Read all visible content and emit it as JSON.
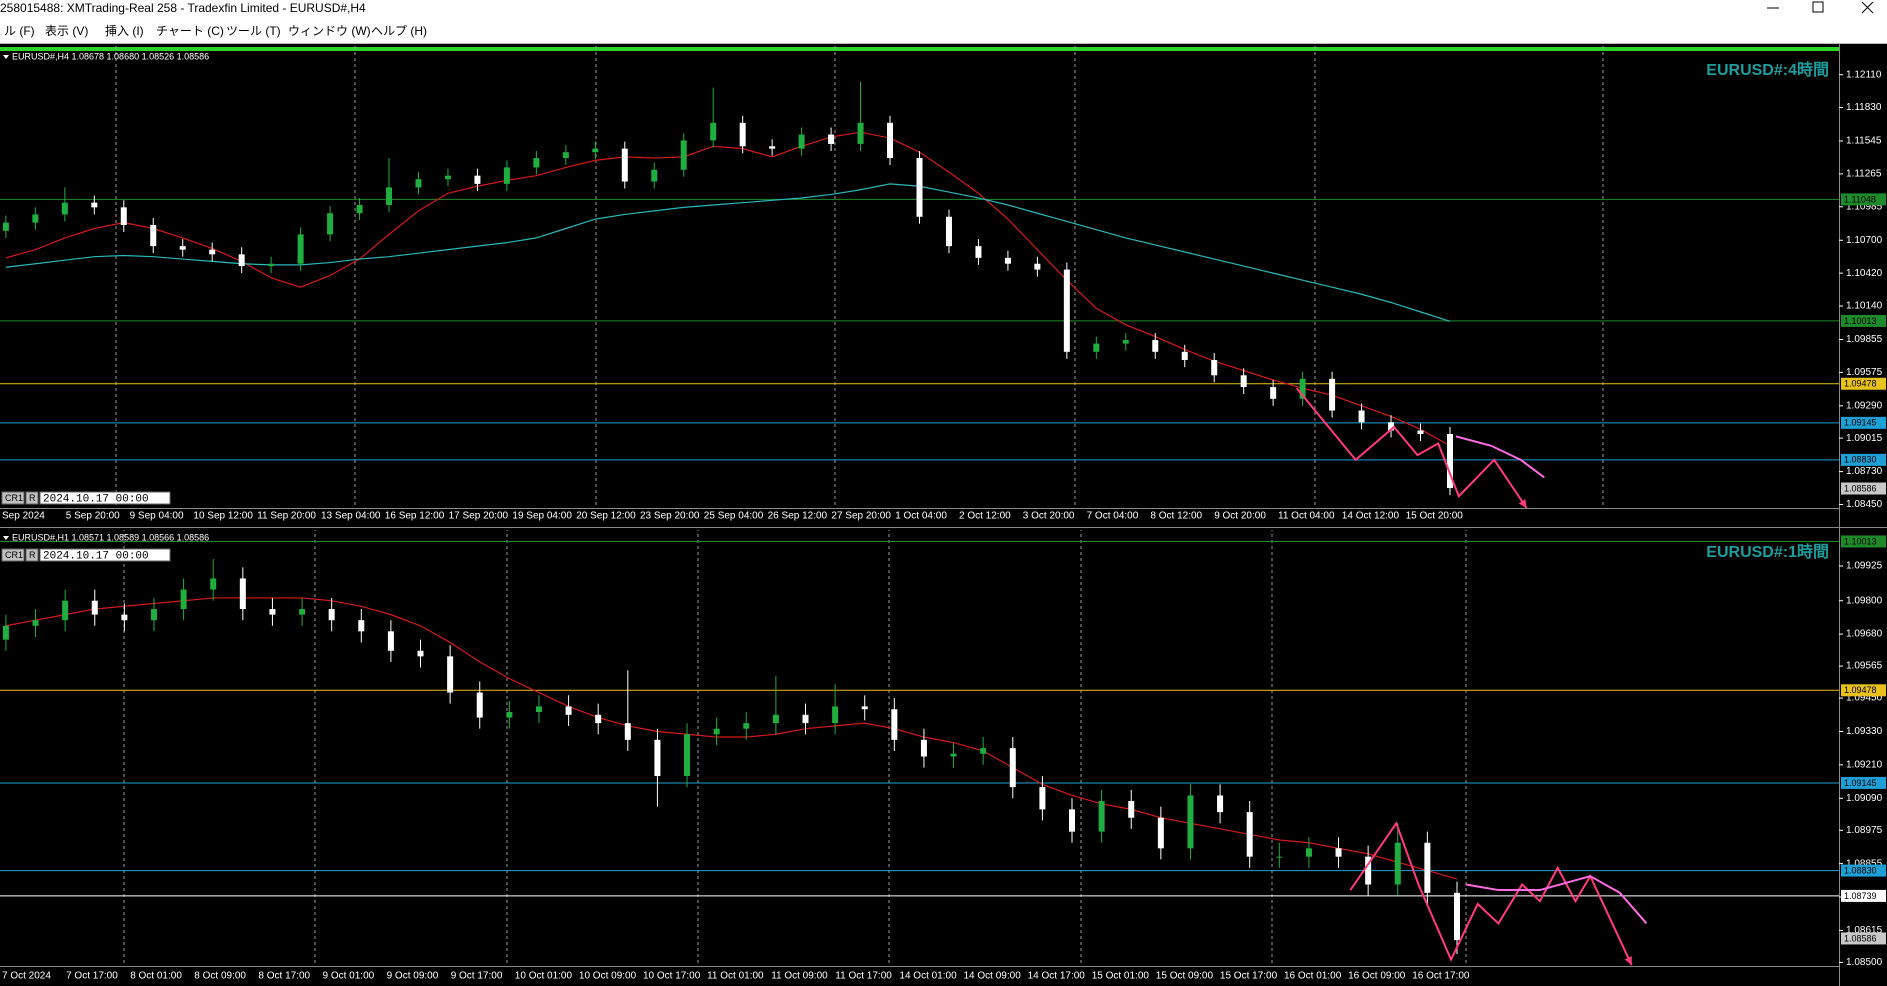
{
  "window": {
    "title": "258015488: XMTrading-Real 258 - Tradexfin Limited - EURUSD#,H4",
    "menu": [
      "ル (F)",
      "表示 (V)",
      "挿入 (I)",
      "チャート (C)",
      "ツール (T)",
      "ウィンドウ (W)",
      "ヘルプ (H)"
    ]
  },
  "chart_data": [
    {
      "type": "candlestick",
      "info": "EURUSD#,H4 1.08678 1.08680 1.08526 1.08586",
      "watermark": "EURUSD#:4時間",
      "cursor_labels": [
        "CR1",
        "R",
        "2024.10.17 00:00"
      ],
      "xlim": [
        -0.2,
        62.2
      ],
      "ylim": [
        1.0842,
        1.1232
      ],
      "yticks": [
        {
          "value": 1.1211,
          "label": "1.12110"
        },
        {
          "value": 1.1183,
          "label": "1.11830"
        },
        1.11545,
        1.11265,
        1.10985,
        {
          "value": 1.107,
          "label": "1.10700"
        },
        {
          "value": 1.1042,
          "label": "1.10420"
        },
        {
          "value": 1.1014,
          "label": "1.10140"
        },
        1.09855,
        1.09575,
        {
          "value": 1.0929,
          "label": "1.09290"
        },
        1.09015,
        {
          "value": 1.0873,
          "label": "1.08730"
        },
        {
          "value": 1.0845,
          "label": "1.08450"
        }
      ],
      "time_labels": [
        "Sep 2024",
        "5 Sep 20:00",
        "9 Sep 04:00",
        "10 Sep 12:00",
        "11 Sep 20:00",
        "13 Sep 04:00",
        "16 Sep 12:00",
        "17 Sep 20:00",
        "19 Sep 04:00",
        "20 Sep 12:00",
        "23 Sep 20:00",
        "25 Sep 04:00",
        "26 Sep 12:00",
        "27 Sep 20:00",
        "1 Oct 04:00",
        "2 Oct 12:00",
        "3 Oct 20:00",
        "7 Oct 04:00",
        "8 Oct 12:00",
        "9 Oct 20:00",
        "11 Oct 04:00",
        "14 Oct 12:00",
        "15 Oct 20:00"
      ],
      "bull_color": "#1fae3f",
      "bear_color": "#ffffff",
      "ohlc": [
        [
          1.1078,
          1.1091,
          1.1072,
          1.1085
        ],
        [
          1.1085,
          1.1098,
          1.1079,
          1.1092
        ],
        [
          1.1092,
          1.1115,
          1.1086,
          1.1102
        ],
        [
          1.1102,
          1.1108,
          1.1092,
          1.1098
        ],
        [
          1.1098,
          1.1104,
          1.1077,
          1.1083
        ],
        [
          1.1083,
          1.1089,
          1.1059,
          1.1065
        ],
        [
          1.1065,
          1.1071,
          1.1056,
          1.1062
        ],
        [
          1.1062,
          1.1068,
          1.1052,
          1.1058
        ],
        [
          1.1058,
          1.1064,
          1.1042,
          1.1048
        ],
        [
          1.1048,
          1.1056,
          1.1042,
          1.105
        ],
        [
          1.105,
          1.1081,
          1.1044,
          1.1075
        ],
        [
          1.1075,
          1.1099,
          1.1069,
          1.1093
        ],
        [
          1.1093,
          1.1106,
          1.1087,
          1.11
        ],
        [
          1.11,
          1.114,
          1.1094,
          1.1115
        ],
        [
          1.1115,
          1.1128,
          1.1109,
          1.1122
        ],
        [
          1.1122,
          1.1131,
          1.1116,
          1.1125
        ],
        [
          1.1125,
          1.1131,
          1.1112,
          1.1118
        ],
        [
          1.1118,
          1.1138,
          1.1112,
          1.1132
        ],
        [
          1.1132,
          1.1146,
          1.1126,
          1.114
        ],
        [
          1.114,
          1.1151,
          1.1134,
          1.1145
        ],
        [
          1.1145,
          1.1154,
          1.1139,
          1.1148
        ],
        [
          1.1148,
          1.1154,
          1.1114,
          1.112
        ],
        [
          1.112,
          1.1136,
          1.1114,
          1.113
        ],
        [
          1.113,
          1.1161,
          1.1124,
          1.1155
        ],
        [
          1.1155,
          1.12,
          1.1149,
          1.117
        ],
        [
          1.117,
          1.1176,
          1.1144,
          1.115
        ],
        [
          1.115,
          1.1156,
          1.1142,
          1.1148
        ],
        [
          1.1148,
          1.1166,
          1.1142,
          1.116
        ],
        [
          1.116,
          1.1166,
          1.1146,
          1.1152
        ],
        [
          1.1152,
          1.1205,
          1.1146,
          1.117
        ],
        [
          1.117,
          1.1176,
          1.1134,
          1.114
        ],
        [
          1.114,
          1.1146,
          1.1084,
          1.109
        ],
        [
          1.109,
          1.1096,
          1.1059,
          1.1065
        ],
        [
          1.1065,
          1.1071,
          1.1049,
          1.1055
        ],
        [
          1.1055,
          1.1061,
          1.1044,
          1.105
        ],
        [
          1.105,
          1.1056,
          1.1039,
          1.1045
        ],
        [
          1.1045,
          1.1051,
          1.0969,
          1.0975
        ],
        [
          1.0975,
          1.0988,
          1.0969,
          1.0982
        ],
        [
          1.0982,
          1.0991,
          1.0976,
          1.0985
        ],
        [
          1.0985,
          1.0991,
          1.0969,
          1.0975
        ],
        [
          1.0975,
          1.0981,
          1.0962,
          1.0968
        ],
        [
          1.0968,
          1.0974,
          1.0949,
          1.0955
        ],
        [
          1.0955,
          1.0961,
          1.0939,
          1.0945
        ],
        [
          1.0945,
          1.0951,
          1.0929,
          1.0935
        ],
        [
          1.0935,
          1.0958,
          1.0929,
          1.0952
        ],
        [
          1.0952,
          1.0958,
          1.0919,
          1.0925
        ],
        [
          1.0925,
          1.0931,
          1.0909,
          1.0915
        ],
        [
          1.0915,
          1.0921,
          1.0902,
          1.0908
        ],
        [
          1.0908,
          1.0914,
          1.0899,
          1.0905
        ],
        [
          1.0905,
          1.0911,
          1.0853,
          1.0859
        ]
      ],
      "lines": [
        {
          "color": "#d41a1a",
          "values": [
            1.1055,
            1.1062,
            1.1072,
            1.108,
            1.1085,
            1.108,
            1.1072,
            1.1063,
            1.1052,
            1.1038,
            1.103,
            1.104,
            1.1054,
            1.1075,
            1.1095,
            1.111,
            1.1116,
            1.1121,
            1.1125,
            1.1132,
            1.1138,
            1.1141,
            1.114,
            1.1141,
            1.115,
            1.1148,
            1.1141,
            1.115,
            1.1158,
            1.1162,
            1.1157,
            1.1145,
            1.1128,
            1.111,
            1.1088,
            1.1062,
            1.1036,
            1.1012,
            1.0998,
            1.0988,
            1.0977,
            1.0967,
            1.0959,
            1.0951,
            1.0944,
            1.0938,
            1.0929,
            1.092,
            1.0909,
            1.0895
          ]
        },
        {
          "color": "#2ab7b7",
          "values": [
            1.1047,
            1.105,
            1.1053,
            1.1056,
            1.1057,
            1.1056,
            1.1054,
            1.1052,
            1.105,
            1.1049,
            1.1049,
            1.1051,
            1.1054,
            1.1056,
            1.1059,
            1.1062,
            1.1065,
            1.1068,
            1.1072,
            1.108,
            1.1088,
            1.1092,
            1.1095,
            1.1098,
            1.11,
            1.1102,
            1.1104,
            1.1106,
            1.1109,
            1.1113,
            1.1118,
            1.1116,
            1.1111,
            1.1106,
            1.11,
            1.1093,
            1.1086,
            1.1079,
            1.1072,
            1.1066,
            1.106,
            1.1054,
            1.1048,
            1.1042,
            1.1036,
            1.103,
            1.1024,
            1.1017,
            1.1009,
            1.1001
          ]
        }
      ],
      "levels": [
        {
          "value": 1.11048,
          "color": "#1f8a2a"
        },
        {
          "value": 1.10013,
          "color": "#1f8a2a"
        },
        {
          "value": 1.09478,
          "color": "#e8c21a"
        },
        {
          "value": 1.09145,
          "color": "#1ea0d6"
        },
        {
          "value": {
            "value": 1.0883,
            "label": "1.08830"
          },
          "color": "#1ea0d6"
        },
        {
          "value": 1.08586,
          "color": "#c8c8c8",
          "line": false
        }
      ],
      "drawings": [
        {
          "color": "#ff3b7a",
          "arrow": true,
          "x": [
            43.8,
            45.8,
            47.1,
            47.9,
            48.6,
            49.3,
            50.5,
            51.6
          ],
          "y": [
            1.0944,
            1.0883,
            1.0911,
            1.0887,
            1.0897,
            1.0852,
            1.0883,
            1.0842
          ]
        },
        {
          "color": "#ff6be0",
          "arrow": false,
          "x": [
            49.2,
            50.4,
            51.4,
            52.2
          ],
          "y": [
            1.0903,
            1.0895,
            1.0883,
            1.0868
          ]
        }
      ]
    },
    {
      "type": "candlestick",
      "info": "EURUSD#,H1 1.08571 1.08589 1.08566 1.08586",
      "watermark": "EURUSD#:1時間",
      "cursor_labels": [
        "CR1",
        "R",
        "2024.10.17 00:00"
      ],
      "xlim": [
        -0.2,
        61.9
      ],
      "ylim": [
        1.08487,
        1.10047
      ],
      "yticks": [
        1.09925,
        {
          "value": 1.098,
          "label": "1.09800"
        },
        {
          "value": 1.0968,
          "label": "1.09680"
        },
        1.09565,
        {
          "value": 1.0945,
          "label": "1.09450"
        },
        {
          "value": 1.0933,
          "label": "1.09330"
        },
        {
          "value": 1.0921,
          "label": "1.09210"
        },
        {
          "value": 1.0909,
          "label": "1.09090"
        },
        1.08975,
        1.08855,
        1.08735,
        1.08615,
        {
          "value": 1.085,
          "label": "1.08500"
        }
      ],
      "time_labels": [
        "7 Oct 2024",
        "7 Oct 17:00",
        "8 Oct 01:00",
        "8 Oct 09:00",
        "8 Oct 17:00",
        "9 Oct 01:00",
        "9 Oct 09:00",
        "9 Oct 17:00",
        "10 Oct 01:00",
        "10 Oct 09:00",
        "10 Oct 17:00",
        "11 Oct 01:00",
        "11 Oct 09:00",
        "11 Oct 17:00",
        "14 Oct 01:00",
        "14 Oct 09:00",
        "14 Oct 17:00",
        "15 Oct 01:00",
        "15 Oct 09:00",
        "15 Oct 17:00",
        "16 Oct 01:00",
        "16 Oct 09:00",
        "16 Oct 17:00"
      ],
      "bull_color": "#1fae3f",
      "bear_color": "#ffffff",
      "ohlc": [
        [
          1.0966,
          1.0975,
          1.0962,
          1.0971
        ],
        [
          1.0971,
          1.0977,
          1.0967,
          1.0973
        ],
        [
          1.0973,
          1.0984,
          1.0969,
          1.098
        ],
        [
          1.098,
          1.0984,
          1.0971,
          1.0975
        ],
        [
          1.0975,
          1.0979,
          1.0969,
          1.0973
        ],
        [
          1.0973,
          1.0981,
          1.0969,
          1.0977
        ],
        [
          1.0977,
          1.0988,
          1.0973,
          1.0984
        ],
        [
          1.0984,
          1.0995,
          1.098,
          1.0988
        ],
        [
          1.0988,
          1.0992,
          1.0973,
          1.0977
        ],
        [
          1.0977,
          1.0981,
          1.0971,
          1.0975
        ],
        [
          1.0975,
          1.0981,
          1.0971,
          1.0977
        ],
        [
          1.0977,
          1.0981,
          1.0969,
          1.0973
        ],
        [
          1.0973,
          1.0977,
          1.0965,
          1.0969
        ],
        [
          1.0969,
          1.0973,
          1.0958,
          1.0962
        ],
        [
          1.0962,
          1.0966,
          1.0956,
          1.096
        ],
        [
          1.096,
          1.0964,
          1.0943,
          1.0947
        ],
        [
          1.0947,
          1.0951,
          1.0934,
          1.0938
        ],
        [
          1.0938,
          1.0944,
          1.0934,
          1.094
        ],
        [
          1.094,
          1.0946,
          1.0936,
          1.0942
        ],
        [
          1.0942,
          1.0946,
          1.0935,
          1.0939
        ],
        [
          1.0939,
          1.0943,
          1.0932,
          1.0936
        ],
        [
          1.0936,
          1.0955,
          1.0926,
          1.093
        ],
        [
          1.093,
          1.0934,
          1.0906,
          1.0917
        ],
        [
          1.0917,
          1.0936,
          1.0913,
          1.0932
        ],
        [
          1.0932,
          1.0938,
          1.0928,
          1.0934
        ],
        [
          1.0934,
          1.094,
          1.093,
          1.0936
        ],
        [
          1.0936,
          1.0953,
          1.0932,
          1.0939
        ],
        [
          1.0939,
          1.0943,
          1.0932,
          1.0936
        ],
        [
          1.0936,
          1.095,
          1.0932,
          1.0942
        ],
        [
          1.0942,
          1.0946,
          1.0937,
          1.0941
        ],
        [
          1.0941,
          1.0945,
          1.0926,
          1.093
        ],
        [
          1.093,
          1.0934,
          1.092,
          1.0924
        ],
        [
          1.0924,
          1.0929,
          1.092,
          1.0925
        ],
        [
          1.0925,
          1.0931,
          1.0921,
          1.0927
        ],
        [
          1.0927,
          1.0931,
          1.0909,
          1.0913
        ],
        [
          1.0913,
          1.0917,
          1.0901,
          1.0905
        ],
        [
          1.0905,
          1.0909,
          1.0893,
          1.0897
        ],
        [
          1.0897,
          1.0912,
          1.0893,
          1.0908
        ],
        [
          1.0908,
          1.0912,
          1.0898,
          1.0902
        ],
        [
          1.0902,
          1.0906,
          1.0887,
          1.0891
        ],
        [
          1.0891,
          1.0914,
          1.0887,
          1.091
        ],
        [
          1.091,
          1.0914,
          1.09,
          1.0904
        ],
        [
          1.0904,
          1.0908,
          1.0884,
          1.0888
        ],
        [
          1.0888,
          1.0893,
          1.0884,
          1.0888
        ],
        [
          1.0888,
          1.0895,
          1.0884,
          1.0891
        ],
        [
          1.0891,
          1.0895,
          1.0884,
          1.0888
        ],
        [
          1.0888,
          1.0892,
          1.0874,
          1.0878
        ],
        [
          1.0878,
          1.09,
          1.0874,
          1.0893
        ],
        [
          1.0893,
          1.0897,
          1.0871,
          1.0875
        ],
        [
          1.0875,
          1.0879,
          1.0853,
          1.0858
        ]
      ],
      "lines": [
        {
          "color": "#d41a1a",
          "values": [
            1.0971,
            1.0973,
            1.0975,
            1.0977,
            1.0978,
            1.0979,
            1.098,
            1.0981,
            1.0981,
            1.0981,
            1.0981,
            1.098,
            1.0978,
            1.0975,
            1.0971,
            1.0965,
            1.0958,
            1.0952,
            1.0947,
            1.0942,
            1.0938,
            1.0935,
            1.0933,
            1.0932,
            1.0931,
            1.0931,
            1.0932,
            1.0934,
            1.0935,
            1.0936,
            1.0934,
            1.0931,
            1.0929,
            1.0926,
            1.092,
            1.0914,
            1.091,
            1.0907,
            1.0905,
            1.0902,
            1.09,
            1.0898,
            1.0896,
            1.0894,
            1.0893,
            1.0891,
            1.0889,
            1.0886,
            1.0883,
            1.088
          ]
        }
      ],
      "levels": [
        {
          "value": 1.10013,
          "color": "#1f8a2a"
        },
        {
          "value": 1.09478,
          "color": "#e8c21a"
        },
        {
          "value": 1.09145,
          "color": "#1ea0d6"
        },
        {
          "value": {
            "value": 1.0883,
            "label": "1.08830"
          },
          "color": "#1ea0d6"
        },
        {
          "value": 1.08739,
          "color": "#ffffff"
        },
        {
          "value": 1.08586,
          "color": "#c8c8c8",
          "line": false
        }
      ],
      "drawings": [
        {
          "color": "#ff3b7a",
          "arrow": true,
          "x": [
            45.4,
            46.95,
            47.7,
            48.8,
            49.7,
            50.4,
            51.2,
            51.8,
            52.4,
            53.0,
            53.5,
            54.9
          ],
          "y": [
            1.0876,
            1.09,
            1.0878,
            1.0851,
            1.0871,
            1.0864,
            1.0878,
            1.0872,
            1.0884,
            1.0872,
            1.0881,
            1.0849
          ]
        },
        {
          "color": "#ff6be0",
          "arrow": false,
          "x": [
            49.3,
            50.4,
            51.8,
            53.5,
            54.5,
            55.4
          ],
          "y": [
            1.0878,
            1.0876,
            1.0876,
            1.0881,
            1.0875,
            1.0864
          ]
        }
      ]
    }
  ]
}
